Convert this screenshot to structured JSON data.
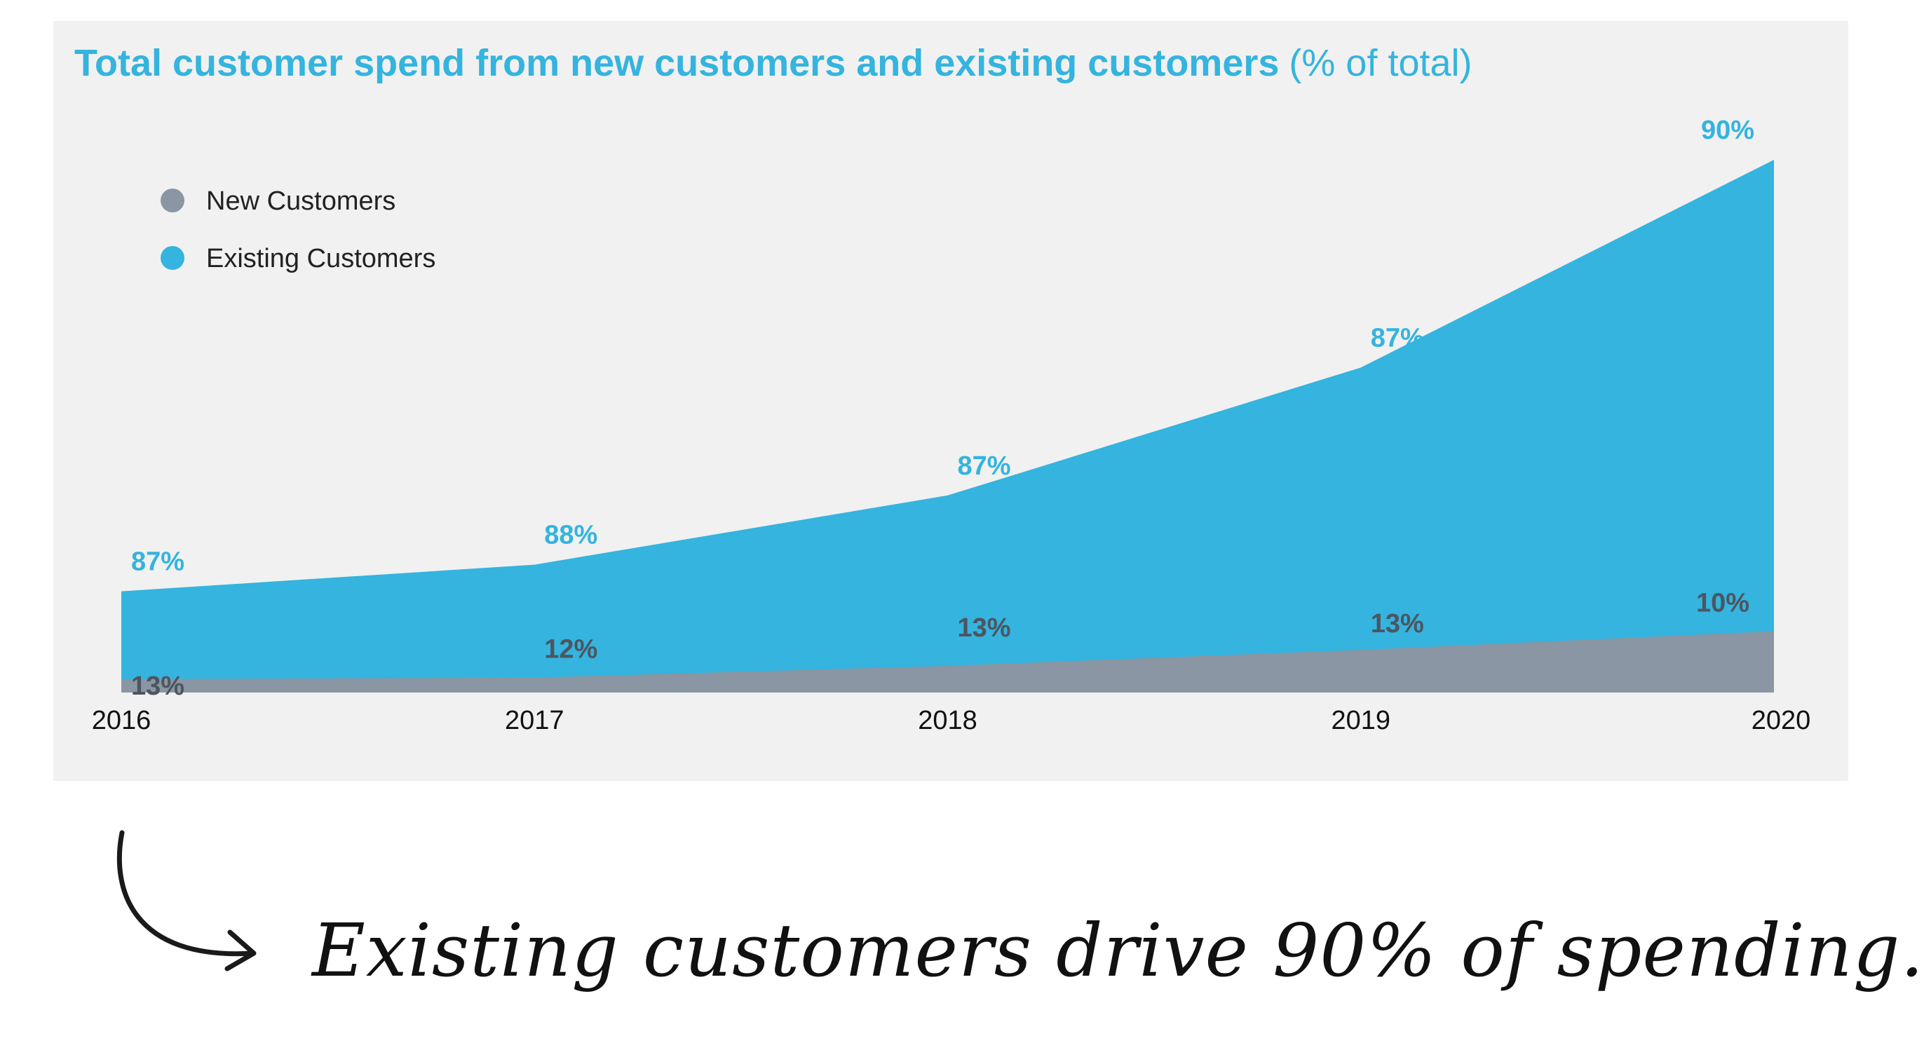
{
  "colors": {
    "existing": "#34b4de",
    "new": "#8a96a3",
    "title": "#34b4de",
    "new_label": "#4d5560",
    "panel_bg": "#f1f1f1"
  },
  "chart_data": {
    "type": "area",
    "title": "Total customer spend from new customers and existing customers",
    "subtitle": "(% of total)",
    "x": [
      "2016",
      "2017",
      "2018",
      "2019",
      "2020"
    ],
    "series": [
      {
        "name": "New Customers",
        "labels": [
          "13%",
          "12%",
          "13%",
          "13%",
          "10%"
        ],
        "values": [
          2.5,
          2.8,
          5.0,
          8.0,
          11.5
        ]
      },
      {
        "name": "Existing Customers",
        "labels": [
          "87%",
          "88%",
          "87%",
          "87%",
          "90%"
        ],
        "values": [
          19,
          24,
          37,
          61,
          100
        ]
      }
    ],
    "stacked": false,
    "legend_position": "top-left",
    "grid": false
  },
  "annotation": {
    "text": "Existing customers drive 90% of spending.",
    "icon": "curved-arrow-icon"
  }
}
